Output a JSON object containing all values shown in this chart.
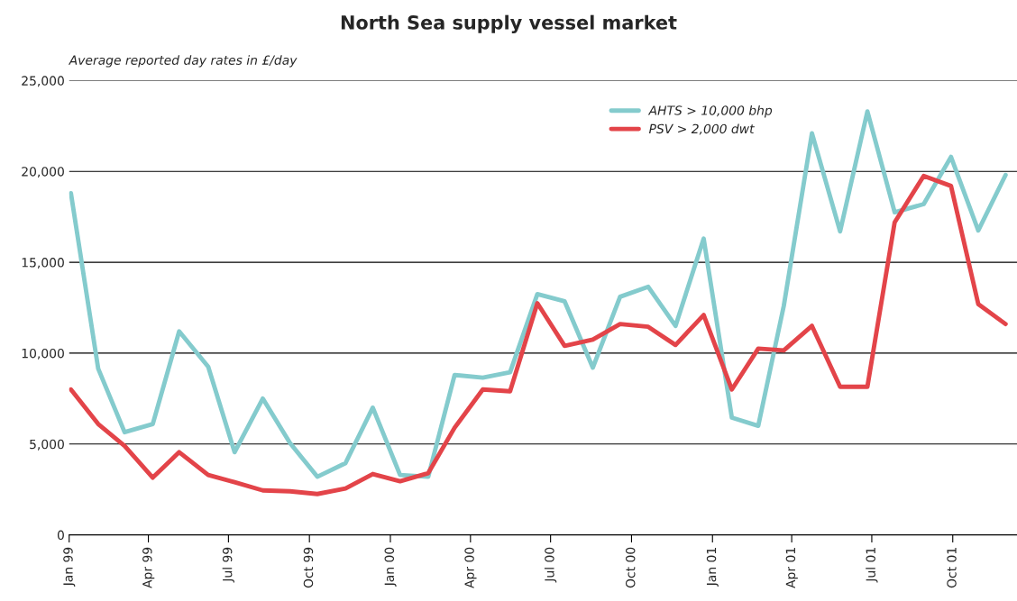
{
  "chart_data": {
    "type": "line",
    "title": "North Sea supply vessel market",
    "ylabel": "Average reported day rates in £/day",
    "x": [
      "1999-01-03",
      "1999-02-03",
      "1999-03-05",
      "1999-04-06",
      "1999-05-06",
      "1999-06-08",
      "1999-07-08",
      "1999-08-09",
      "1999-09-09",
      "1999-10-10",
      "1999-11-11",
      "1999-12-12",
      "2000-01-12",
      "2000-02-13",
      "2000-03-14",
      "2000-04-15",
      "2000-05-16",
      "2000-06-16",
      "2000-07-17",
      "2000-08-18",
      "2000-09-18",
      "2000-10-20",
      "2000-11-20",
      "2000-12-22",
      "2001-01-23",
      "2001-02-22",
      "2001-03-23",
      "2001-04-24",
      "2001-05-26",
      "2001-06-26",
      "2001-07-27",
      "2001-08-29",
      "2001-09-29",
      "2001-10-30",
      "2001-11-30"
    ],
    "series": [
      {
        "name": "AHTS > 10,000 bhp",
        "color": "#84cbcd",
        "values": [
          18800,
          9150,
          5650,
          6100,
          11200,
          9250,
          4550,
          7500,
          5050,
          3200,
          3950,
          7000,
          3300,
          3200,
          8800,
          8650,
          8950,
          13250,
          12850,
          9200,
          13100,
          13650,
          11500,
          16300,
          6450,
          6000,
          12600,
          22100,
          16700,
          23300,
          17750,
          18200,
          20800,
          16750,
          19800
        ]
      },
      {
        "name": "PSV > 2,000 dwt",
        "color": "#e34449",
        "values": [
          8000,
          6100,
          4900,
          3150,
          4550,
          3300,
          2900,
          2450,
          2400,
          2250,
          2550,
          3350,
          2950,
          3400,
          5900,
          8000,
          7900,
          12750,
          10400,
          10750,
          11600,
          11450,
          10450,
          12100,
          8000,
          10250,
          10150,
          11500,
          8150,
          8150,
          17200,
          19750,
          19200,
          12700,
          11600
        ]
      }
    ],
    "xlim": [
      "1999-01-01",
      "2001-12-13"
    ],
    "xticks": [
      {
        "value": "1999-01-01",
        "label": "Jan 99"
      },
      {
        "value": "1999-04-01",
        "label": "Apr 99"
      },
      {
        "value": "1999-07-01",
        "label": "Jul 99"
      },
      {
        "value": "1999-10-01",
        "label": "Oct 99"
      },
      {
        "value": "2000-01-01",
        "label": "Jan 00"
      },
      {
        "value": "2000-04-01",
        "label": "Apr 00"
      },
      {
        "value": "2000-07-01",
        "label": "Jul 00"
      },
      {
        "value": "2000-10-01",
        "label": "Oct 00"
      },
      {
        "value": "2001-01-01",
        "label": "Jan 01"
      },
      {
        "value": "2001-04-01",
        "label": "Apr 01"
      },
      {
        "value": "2001-07-01",
        "label": "Jul 01"
      },
      {
        "value": "2001-10-01",
        "label": "Oct 01"
      }
    ],
    "ylim": [
      0,
      25000
    ],
    "yticks": [
      {
        "value": 0,
        "label": "0"
      },
      {
        "value": 5000,
        "label": "5,000"
      },
      {
        "value": 10000,
        "label": "10,000"
      },
      {
        "value": 15000,
        "label": "15,000"
      },
      {
        "value": 20000,
        "label": "20,000"
      },
      {
        "value": 25000,
        "label": "25,000"
      }
    ],
    "grid": "y",
    "legend": "top right",
    "line_style": "solid"
  }
}
